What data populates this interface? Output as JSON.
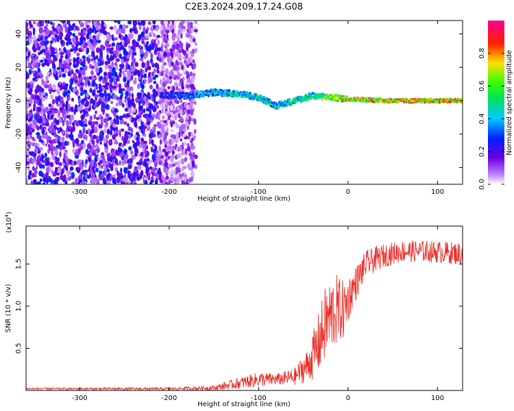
{
  "title": "C2E3.2024.209.17.24.G08",
  "chart_data": [
    {
      "type": "heatmap",
      "xlabel": "Height of straight line (km)",
      "ylabel": "Frequency (Hz)",
      "xlim": [
        -360,
        128
      ],
      "ylim": [
        -50,
        48
      ],
      "xticks": [
        -300,
        -200,
        -100,
        0,
        100
      ],
      "yticks": [
        -40,
        -20,
        0,
        20,
        40
      ],
      "colorbar": {
        "label": "Normalized spectral amplitude",
        "range": [
          0,
          1
        ],
        "ticks": [
          0.0,
          0.2,
          0.4,
          0.6,
          0.8
        ],
        "colormap": "rainbow (violet-blue-cyan-green-yellow-red-magenta)"
      },
      "ridge": {
        "description": "Coherent signal band emerging near -210 km and converging to 0 Hz above 0 km",
        "x": [
          -210,
          -180,
          -150,
          -120,
          -100,
          -80,
          -60,
          -40,
          -20,
          0,
          50,
          128
        ],
        "freq": [
          3,
          3,
          5,
          4,
          2,
          -3,
          0,
          3,
          2,
          1,
          0,
          0
        ],
        "amplitude": [
          0.25,
          0.35,
          0.45,
          0.5,
          0.5,
          0.45,
          0.5,
          0.55,
          0.7,
          0.85,
          0.9,
          0.9
        ]
      },
      "noise_region": {
        "x_range": [
          -360,
          -180
        ],
        "amplitude": [
          0.1,
          0.3
        ]
      }
    },
    {
      "type": "line",
      "xlabel": "Height of straight line (km)",
      "ylabel": "SNR (10 * v/v)",
      "y_scale_label": "(x10",
      "y_scale_exp": "4",
      "y_scale_close": ")",
      "xlim": [
        -360,
        128
      ],
      "ylim": [
        0,
        19500
      ],
      "xticks": [
        -300,
        -200,
        -100,
        0,
        100
      ],
      "yticks": [
        5000,
        10000,
        15000
      ],
      "ytick_labels": [
        "0.5",
        "1.0",
        "1.5"
      ],
      "color": "#e8302a",
      "envelope": {
        "x": [
          -360,
          -200,
          -150,
          -120,
          -100,
          -80,
          -60,
          -45,
          -35,
          -25,
          -15,
          -5,
          5,
          20,
          40,
          60,
          90,
          128
        ],
        "mean": [
          200,
          200,
          300,
          900,
          1300,
          1300,
          1600,
          3000,
          5000,
          8000,
          9500,
          9500,
          12000,
          15000,
          16000,
          16500,
          16500,
          16200
        ],
        "spread": [
          120,
          150,
          300,
          700,
          900,
          700,
          1000,
          2000,
          3500,
          4500,
          4500,
          3500,
          2200,
          1600,
          1400,
          1300,
          1300,
          1400
        ]
      }
    }
  ]
}
